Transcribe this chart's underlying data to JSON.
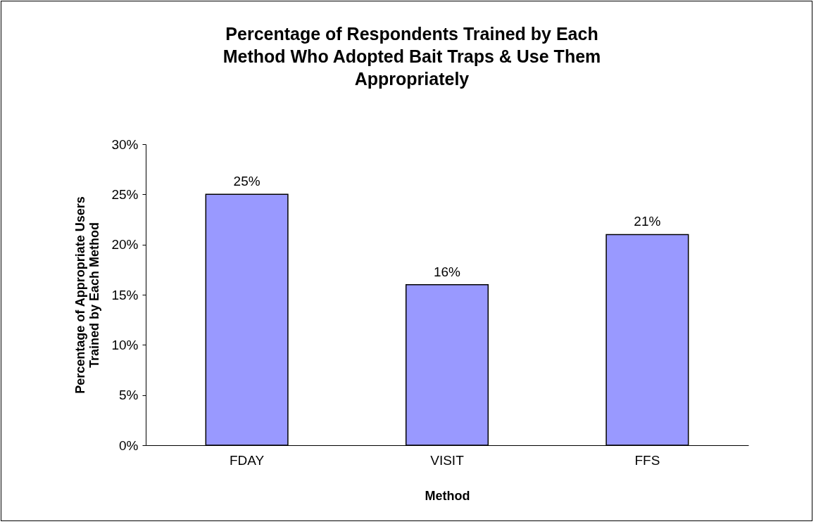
{
  "chart_data": {
    "type": "bar",
    "title": "Percentage of Respondents Trained by Each Method Who Adopted Bait Traps & Use Them Appropriately",
    "xlabel": "Method",
    "ylabel": "Percentage of Appropriate Users Trained by Each Method",
    "categories": [
      "FDAY",
      "VISIT",
      "FFS"
    ],
    "values": [
      25,
      16,
      21
    ],
    "value_labels": [
      "25%",
      "16%",
      "21%"
    ],
    "color": "#9999ff",
    "ylim": [
      0,
      30
    ],
    "yticks": [
      {
        "value": 0,
        "label": "0%"
      },
      {
        "value": 5,
        "label": "5%"
      },
      {
        "value": 10,
        "label": "10%"
      },
      {
        "value": 15,
        "label": "15%"
      },
      {
        "value": 20,
        "label": "20%"
      },
      {
        "value": 25,
        "label": "25%"
      },
      {
        "value": 30,
        "label": "30%"
      }
    ],
    "grid": false
  }
}
